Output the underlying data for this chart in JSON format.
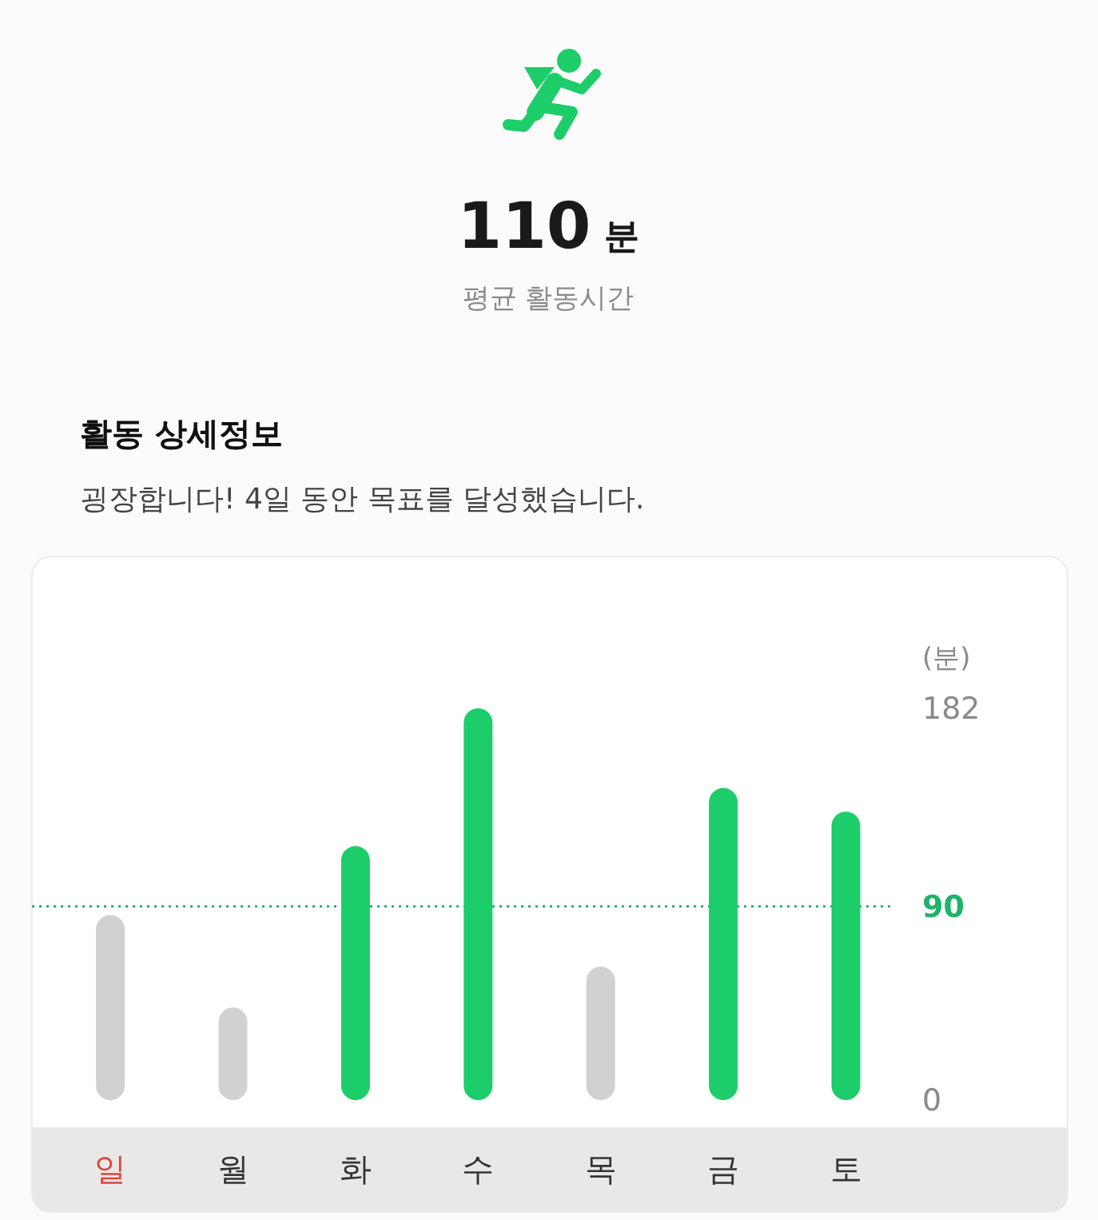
{
  "chart_data": {
    "type": "bar",
    "title": "활동 상세정보",
    "subtitle": "굉장합니다! 4일 동안 목표를 달성했습니다.",
    "annotations": [
      "110 분",
      "평균 활동시간"
    ],
    "ylabel": "(분)",
    "categories": [
      "일",
      "월",
      "화",
      "수",
      "목",
      "금",
      "토"
    ],
    "values": [
      86,
      43,
      118,
      182,
      62,
      145,
      134
    ],
    "colors": [
      "#d1d1d1",
      "#d1d1d1",
      "#1dcd6a",
      "#1dcd6a",
      "#d1d1d1",
      "#1dcd6a",
      "#1dcd6a"
    ],
    "ylim": [
      0,
      182
    ],
    "yticks": [
      0,
      182
    ],
    "ref_lines": [
      {
        "axis": "y",
        "value": 90,
        "label": "90",
        "color": "#1fb36a",
        "line_style": "dotted"
      }
    ]
  }
}
